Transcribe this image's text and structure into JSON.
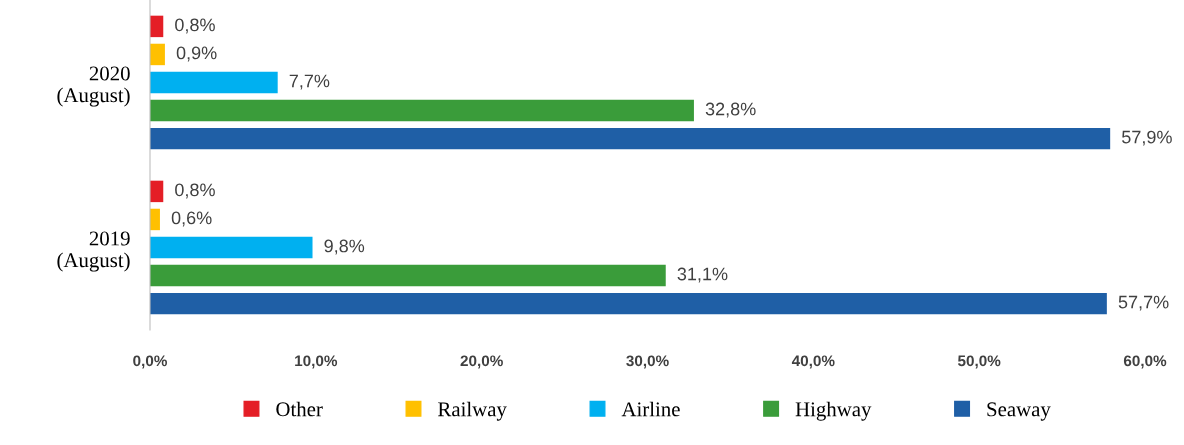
{
  "chart_data": {
    "type": "bar",
    "orientation": "horizontal",
    "categories": [
      "2020\n(August)",
      "2019\n(August)"
    ],
    "series": [
      {
        "name": "Other",
        "color": "#e41e26",
        "values": [
          0.8,
          0.8
        ],
        "value_labels": [
          "0,8%",
          "0,8%"
        ]
      },
      {
        "name": "Railway",
        "color": "#ffc000",
        "values": [
          0.9,
          0.6
        ],
        "value_labels": [
          "0,9%",
          "0,6%"
        ]
      },
      {
        "name": "Airline",
        "color": "#00b0f0",
        "values": [
          7.7,
          9.8
        ],
        "value_labels": [
          "7,7%",
          "9,8%"
        ]
      },
      {
        "name": "Highway",
        "color": "#3a9c3a",
        "values": [
          32.8,
          31.1
        ],
        "value_labels": [
          "32,8%",
          "31,1%"
        ]
      },
      {
        "name": "Seaway",
        "color": "#1f5fa6",
        "values": [
          57.9,
          57.7
        ],
        "value_labels": [
          "57,9%",
          "57,7%"
        ]
      }
    ],
    "xlim": [
      0,
      60
    ],
    "xticks": [
      {
        "value": 0,
        "label": "0,0%"
      },
      {
        "value": 10,
        "label": "10,0%"
      },
      {
        "value": 20,
        "label": "20,0%"
      },
      {
        "value": 30,
        "label": "30,0%"
      },
      {
        "value": 40,
        "label": "40,0%"
      },
      {
        "value": 50,
        "label": "50,0%"
      },
      {
        "value": 60,
        "label": "60,0%"
      }
    ],
    "grid": false,
    "legend": "bottom"
  }
}
